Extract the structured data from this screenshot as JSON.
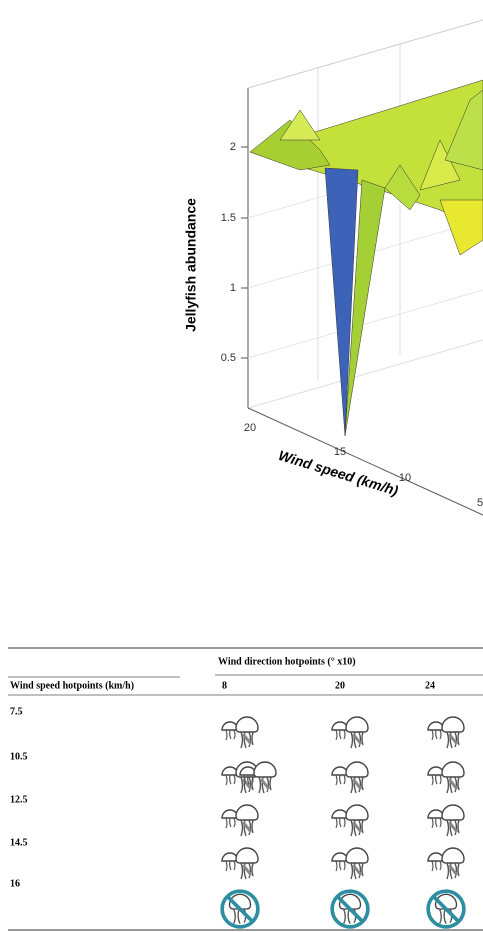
{
  "figure": {
    "z_axis": {
      "label": "Jellyfish abundance",
      "ticks": [
        "0.5",
        "1",
        "1.5",
        "2"
      ]
    },
    "x_axis": {
      "label": "Wind speed (km/h)",
      "ticks": [
        "20",
        "15",
        "10",
        "5"
      ]
    }
  },
  "table": {
    "group_header": "Wind direction hotpoints (° x10)",
    "row_header": "Wind speed hotpoints (km/h)",
    "columns": [
      "8",
      "20",
      "24"
    ],
    "rows": [
      "7.5",
      "10.5",
      "12.5",
      "14.5",
      "16"
    ]
  }
}
